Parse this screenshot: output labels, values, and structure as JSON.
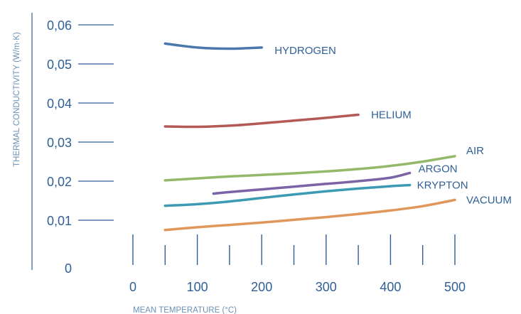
{
  "chart_data": {
    "type": "line",
    "title": "",
    "xlabel": "MEAN TEMPERATURE (°C)",
    "ylabel": "THERMAL CONDUCTIVITY (W/m·K)",
    "xlim": [
      0,
      500
    ],
    "ylim": [
      0,
      0.06
    ],
    "x_ticks": [
      0,
      100,
      200,
      300,
      400,
      500
    ],
    "x_tick_labels": [
      "0",
      "100",
      "200",
      "300",
      "400",
      "500"
    ],
    "x_minor_ticks": [
      50,
      150,
      250,
      350,
      450
    ],
    "y_ticks": [
      0.01,
      0.02,
      0.03,
      0.04,
      0.05,
      0.06
    ],
    "y_tick_labels": [
      "0,01",
      "0,02",
      "0,03",
      "0,04",
      "0,05",
      "0,06"
    ],
    "origin_label": "0",
    "legend": "inline labels at line ends",
    "grid": false,
    "series": [
      {
        "name": "HYDROGEN",
        "color": "#4a78ad",
        "x": [
          50,
          100,
          150,
          200
        ],
        "y": [
          0.0552,
          0.0542,
          0.0539,
          0.0542
        ]
      },
      {
        "name": "HELIUM",
        "color": "#b35a55",
        "x": [
          50,
          100,
          150,
          200,
          250,
          300,
          350
        ],
        "y": [
          0.034,
          0.0339,
          0.0342,
          0.0348,
          0.0355,
          0.0362,
          0.037
        ]
      },
      {
        "name": "AIR",
        "color": "#94b86a",
        "x": [
          50,
          100,
          150,
          200,
          250,
          300,
          350,
          400,
          450,
          500
        ],
        "y": [
          0.0202,
          0.0207,
          0.0212,
          0.0216,
          0.022,
          0.0225,
          0.0231,
          0.0239,
          0.025,
          0.0264
        ]
      },
      {
        "name": "ARGON",
        "color": "#7b63a6",
        "x": [
          125,
          150,
          200,
          250,
          300,
          350,
          400,
          430
        ],
        "y": [
          0.0168,
          0.0172,
          0.0179,
          0.0186,
          0.0193,
          0.02,
          0.0209,
          0.0221
        ]
      },
      {
        "name": "KRYPTON",
        "color": "#3c9ab3",
        "x": [
          50,
          100,
          150,
          200,
          250,
          300,
          350,
          400,
          430
        ],
        "y": [
          0.0137,
          0.0141,
          0.0148,
          0.0157,
          0.0166,
          0.0174,
          0.0181,
          0.0187,
          0.019
        ]
      },
      {
        "name": "VACUUM",
        "color": "#e0975a",
        "x": [
          50,
          100,
          150,
          200,
          250,
          300,
          350,
          400,
          450,
          500
        ],
        "y": [
          0.0075,
          0.0082,
          0.0088,
          0.0094,
          0.0101,
          0.0108,
          0.0116,
          0.0125,
          0.0136,
          0.0152
        ]
      }
    ]
  },
  "colors": {
    "axis": "#2f5f96",
    "text": "#2f5f96",
    "axis_title": "#6b8fb5"
  }
}
